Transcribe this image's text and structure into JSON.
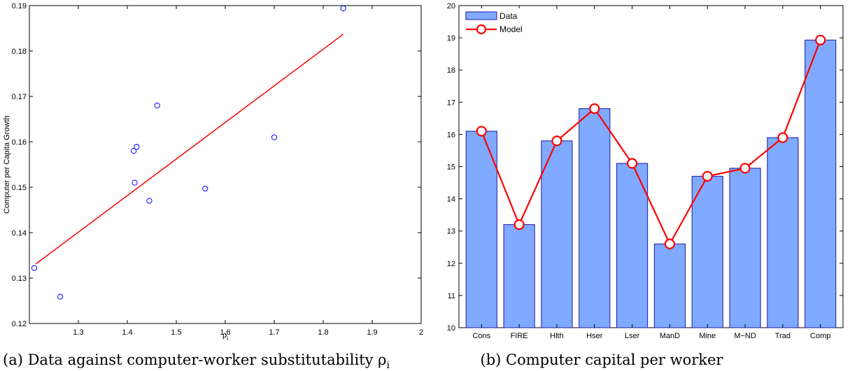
{
  "chart_data": [
    {
      "type": "scatter",
      "title": "",
      "xlabel": "ρ",
      "xlabel_sub": "i",
      "ylabel": "Computer per Capita Growth",
      "xlim": [
        1.2,
        2.0
      ],
      "ylim": [
        0.12,
        0.19
      ],
      "xticks": [
        "1.3",
        "1.4",
        "1.5",
        "1.6",
        "1.7",
        "1.8",
        "1.9",
        "2"
      ],
      "yticks": [
        "0.12",
        "0.13",
        "0.14",
        "0.15",
        "0.16",
        "0.17",
        "0.18",
        "0.19"
      ],
      "points": [
        {
          "x": 1.21,
          "y": 0.1322
        },
        {
          "x": 1.263,
          "y": 0.1259
        },
        {
          "x": 1.413,
          "y": 0.158
        },
        {
          "x": 1.415,
          "y": 0.151
        },
        {
          "x": 1.419,
          "y": 0.1589
        },
        {
          "x": 1.445,
          "y": 0.147
        },
        {
          "x": 1.461,
          "y": 0.168
        },
        {
          "x": 1.559,
          "y": 0.1497
        },
        {
          "x": 1.7,
          "y": 0.161
        },
        {
          "x": 1.841,
          "y": 0.1894
        }
      ],
      "fit_line": {
        "x": [
          1.213,
          1.841
        ],
        "y": [
          0.1331,
          0.1837
        ]
      },
      "colors": {
        "points": "#0000ff",
        "fit": "#ff0000"
      },
      "caption": "(a) Data against computer-worker substitutability ρ",
      "caption_sub": "i"
    },
    {
      "type": "bar",
      "title": "",
      "xlabel": "",
      "ylabel": "",
      "ylim": [
        10,
        20
      ],
      "yticks": [
        "10",
        "11",
        "12",
        "13",
        "14",
        "15",
        "16",
        "17",
        "18",
        "19",
        "20"
      ],
      "categories": [
        "Cons",
        "FIRE",
        "Hlth",
        "Hser",
        "Lser",
        "ManD",
        "Mine",
        "M−ND",
        "Trad",
        "Comp"
      ],
      "series": [
        {
          "name": "Data",
          "kind": "bar",
          "values": [
            16.1,
            13.2,
            15.8,
            16.8,
            15.1,
            12.6,
            14.7,
            14.95,
            15.9,
            18.93
          ]
        },
        {
          "name": "Model",
          "kind": "line",
          "values": [
            16.1,
            13.2,
            15.8,
            16.8,
            15.1,
            12.6,
            14.7,
            14.95,
            15.9,
            18.93
          ]
        }
      ],
      "legend_position": "top-left",
      "colors": {
        "bar_fill": "#80aaff",
        "bar_edge": "#1a1aa0",
        "line": "#ff0000",
        "marker_fill": "#ffffff"
      },
      "caption": "(b) Computer capital per worker"
    }
  ]
}
